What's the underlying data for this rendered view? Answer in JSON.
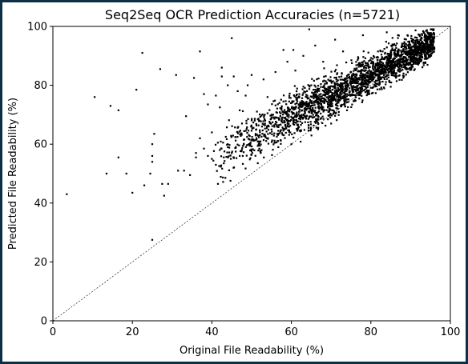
{
  "chart_data": {
    "type": "scatter",
    "title": "Seq2Seq OCR Prediction Accuracies (n=5721)",
    "xlabel": "Original File Readability (%)",
    "ylabel": "Predicted File Readability (%)",
    "xlim": [
      0,
      100
    ],
    "ylim": [
      0,
      100
    ],
    "xticks": [
      0,
      20,
      40,
      60,
      80,
      100
    ],
    "yticks": [
      0,
      20,
      40,
      60,
      80,
      100
    ],
    "grid": false,
    "reference_line": {
      "x": [
        0,
        100
      ],
      "y": [
        0,
        100
      ],
      "style": "dotted"
    },
    "marker_color": "#000000",
    "points": [
      [
        3.5,
        43
      ],
      [
        10.5,
        76
      ],
      [
        13.5,
        50
      ],
      [
        14.5,
        73
      ],
      [
        16.5,
        71.5
      ],
      [
        16.5,
        55.5
      ],
      [
        18.5,
        50
      ],
      [
        20,
        43.5
      ],
      [
        21,
        78.5
      ],
      [
        22.5,
        91
      ],
      [
        23,
        46
      ],
      [
        24.5,
        50
      ],
      [
        25,
        60
      ],
      [
        25.5,
        63.5
      ],
      [
        25,
        56
      ],
      [
        25,
        54
      ],
      [
        25,
        27.5
      ],
      [
        27,
        85.5
      ],
      [
        27.5,
        46.5
      ],
      [
        28,
        42.5
      ],
      [
        29,
        46.5
      ],
      [
        31,
        83.5
      ],
      [
        31.5,
        51
      ],
      [
        33,
        51
      ],
      [
        33.5,
        69.5
      ],
      [
        34.5,
        49.5
      ],
      [
        35.5,
        82.5
      ],
      [
        36,
        55.5
      ],
      [
        37,
        91.5
      ],
      [
        38,
        77
      ],
      [
        39,
        73.5
      ],
      [
        41,
        76.5
      ],
      [
        42,
        72.5
      ],
      [
        42.5,
        86
      ],
      [
        42.5,
        83
      ],
      [
        43,
        53.5
      ],
      [
        44,
        80
      ],
      [
        45,
        96
      ],
      [
        45.5,
        83
      ],
      [
        46.5,
        78
      ],
      [
        47,
        71.5
      ],
      [
        48.5,
        76.5
      ],
      [
        49,
        80
      ],
      [
        50,
        83.5
      ],
      [
        51,
        63.5
      ],
      [
        52,
        68
      ],
      [
        53,
        82
      ],
      [
        54,
        76
      ],
      [
        55,
        70
      ],
      [
        56,
        84.5
      ],
      [
        57,
        74
      ],
      [
        58,
        92
      ],
      [
        59,
        88
      ],
      [
        60,
        60
      ],
      [
        60.5,
        92
      ],
      [
        61,
        85
      ],
      [
        62,
        77
      ],
      [
        63,
        90
      ],
      [
        64.5,
        99
      ],
      [
        65,
        80
      ],
      [
        66,
        93.5
      ],
      [
        67,
        72
      ],
      [
        68,
        88
      ],
      [
        70,
        67
      ],
      [
        71,
        95.5
      ],
      [
        73,
        91.5
      ],
      [
        74,
        71.5
      ],
      [
        78,
        97
      ],
      [
        84,
        98
      ],
      [
        46,
        59
      ],
      [
        47,
        56
      ],
      [
        48,
        61.5
      ],
      [
        50,
        66
      ],
      [
        52,
        63
      ],
      [
        54,
        70.5
      ],
      [
        55,
        65
      ],
      [
        57,
        66.5
      ],
      [
        58,
        74.5
      ],
      [
        59,
        68
      ],
      [
        61,
        72
      ],
      [
        62,
        71
      ],
      [
        63,
        74
      ],
      [
        64,
        76.5
      ],
      [
        65,
        74
      ],
      [
        66,
        78.5
      ],
      [
        44,
        60
      ],
      [
        45,
        57
      ],
      [
        40,
        55
      ],
      [
        42,
        58
      ],
      [
        39,
        56
      ],
      [
        41,
        53
      ],
      [
        43,
        55.5
      ],
      [
        36,
        57
      ],
      [
        37,
        62
      ],
      [
        38,
        58.5
      ],
      [
        40,
        64
      ],
      [
        41.5,
        60.5
      ],
      [
        43.5,
        62.5
      ]
    ],
    "dense_region": [
      {
        "x_from": 40,
        "x_to": 96,
        "slope": 0.72,
        "intercept": 26,
        "spread": 5.5,
        "count": 2500
      }
    ]
  }
}
